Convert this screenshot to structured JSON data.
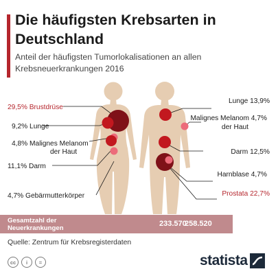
{
  "title": "Die häufigsten Krebsarten in Deutschland",
  "subtitle": "Anteil der häufigsten Tumorlokalisationen an allen Krebsneuerkrankungen 2016",
  "female": [
    {
      "name": "Brustdrüse",
      "value": "29,5 %",
      "text": "29,5% Brustdrüse",
      "highlight": true
    },
    {
      "name": "Lunge",
      "value": "9,2 %",
      "text": "9,2% Lunge",
      "highlight": false
    },
    {
      "name": "Malignes Melanom der Haut",
      "value": "4,8 %",
      "text1": "4,8% Malignes Melanom",
      "text2": "der Haut",
      "highlight": false
    },
    {
      "name": "Darm",
      "value": "11,1 %",
      "text": "11,1% Darm",
      "highlight": false
    },
    {
      "name": "Gebärmutterkörper",
      "value": "4,7 %",
      "text": "4,7% Gebärmutterkörper",
      "highlight": false
    }
  ],
  "male": [
    {
      "name": "Lunge",
      "value": "13,9 %",
      "text": "Lunge 13,9%",
      "highlight": false
    },
    {
      "name": "Malignes Melanom der Haut",
      "value": "4,7 %",
      "text1": "Malignes Melanom 4,7%",
      "text2": "der Haut",
      "highlight": false
    },
    {
      "name": "Darm",
      "value": "12,5 %",
      "text": "Darm 12,5%",
      "highlight": false
    },
    {
      "name": "Harnblase",
      "value": "4,7 %",
      "text": "Harnblase 4,7%",
      "highlight": false
    },
    {
      "name": "Prostata",
      "value": "22,7 %",
      "text": "Prostata 22,7%",
      "highlight": true
    }
  ],
  "totals": {
    "label_line1": "Gesamtzahl der",
    "label_line2": "Neuerkrankungen",
    "female": "233.570",
    "male": "258.520"
  },
  "source": "Quelle: Zentrum für Krebsregisterdaten",
  "license_icons": [
    "cc-icon",
    "attribution-icon",
    "no-derivatives-icon"
  ],
  "license_glyphs": [
    "cc",
    "i",
    "="
  ],
  "brand": "statista",
  "colors": {
    "accent": "#b5262d",
    "dark_red": "#7f1118",
    "mid_red": "#c2181f",
    "pink": "#ec6b7a",
    "silhouette": "#e6cdb2",
    "totals_bar": "#c08a8d"
  }
}
